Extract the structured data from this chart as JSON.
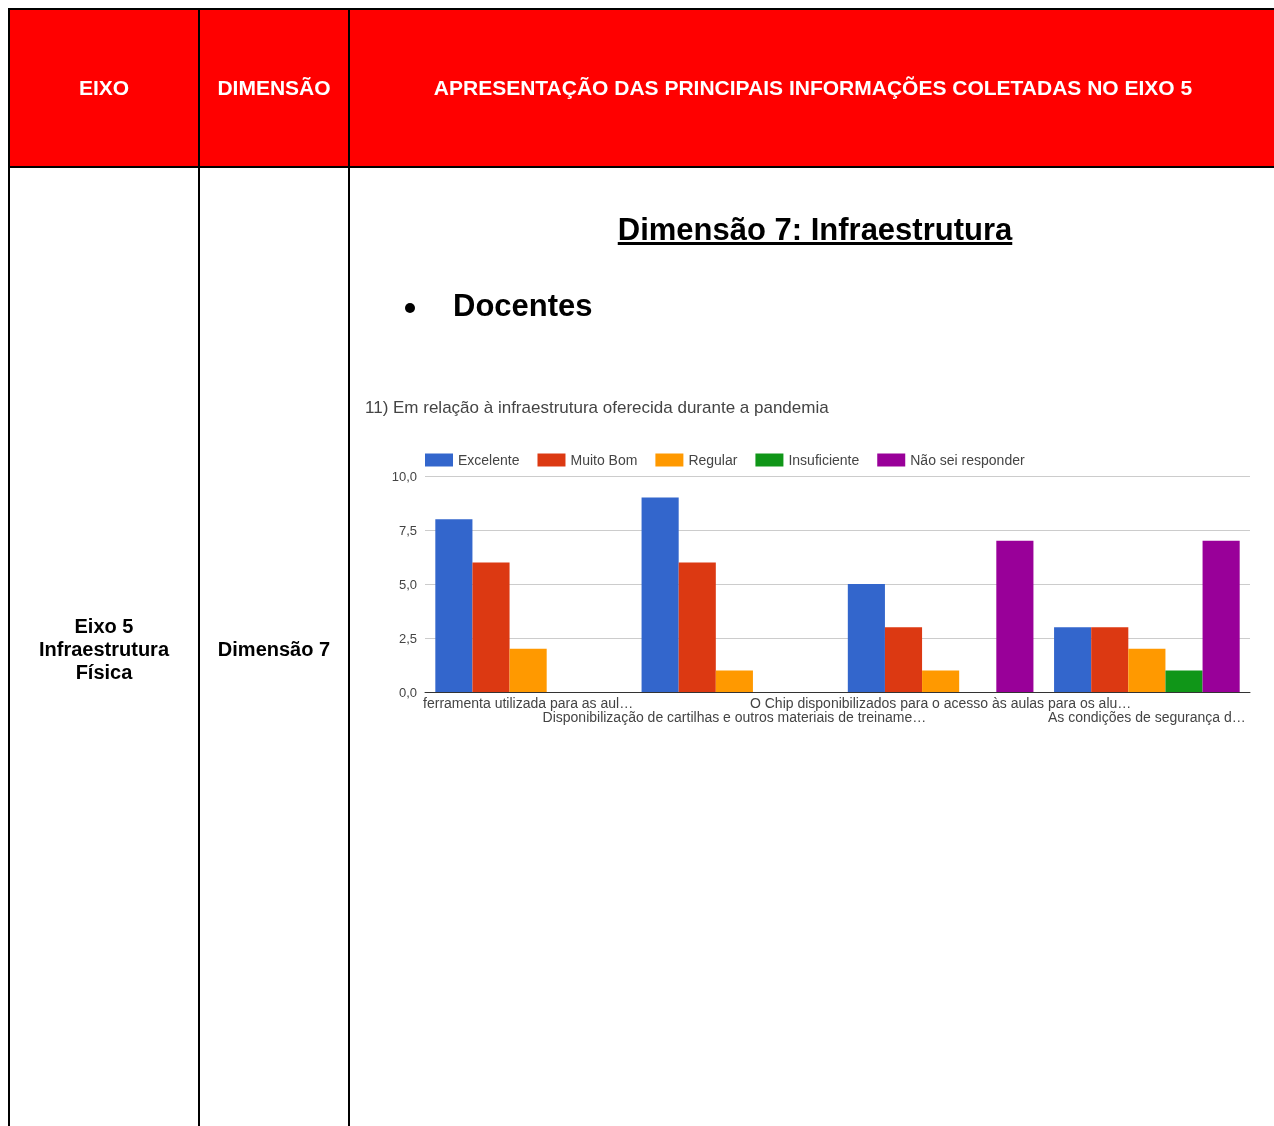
{
  "chart_data": {
    "type": "bar",
    "title": "11) Em relação à infraestrutura oferecida durante a pandemia",
    "annotations": [
      "EIXO",
      "DIMENSÃO",
      "APRESENTAÇÃO DAS PRINCIPAIS INFORMAÇÕES COLETADAS NO EIXO 5",
      "Eixo 5 Infraestrutura Física",
      "Dimensão 7",
      "Dimensão 7: Infraestrutura",
      "Docentes"
    ],
    "categories": [
      "ferramenta utilizada para as aul…",
      "Disponibilização de cartilhas e outros materiais de treiname…",
      "O Chip disponibilizados para o acesso às aulas para os alu…",
      "As condições de segurança d…"
    ],
    "series": [
      {
        "name": "Excelente",
        "color": "#3366cc",
        "values": [
          8,
          9,
          5,
          3
        ]
      },
      {
        "name": "Muito Bom",
        "color": "#dc3912",
        "values": [
          6,
          6,
          3,
          3
        ]
      },
      {
        "name": "Regular",
        "color": "#ff9900",
        "values": [
          2,
          1,
          1,
          2
        ]
      },
      {
        "name": "Insuficiente",
        "color": "#109618",
        "values": [
          0,
          0,
          0,
          1
        ]
      },
      {
        "name": "Não sei responder",
        "color": "#990099",
        "values": [
          0,
          0,
          7,
          7
        ]
      }
    ],
    "ylim": [
      0,
      10
    ],
    "yticks": [
      {
        "value": 0,
        "label": "0,0"
      },
      {
        "value": 2.5,
        "label": "2,5"
      },
      {
        "value": 5,
        "label": "5,0"
      },
      {
        "value": 7.5,
        "label": "7,5"
      },
      {
        "value": 10,
        "label": "10,0"
      }
    ],
    "grid": "y",
    "legend": "top left"
  }
}
